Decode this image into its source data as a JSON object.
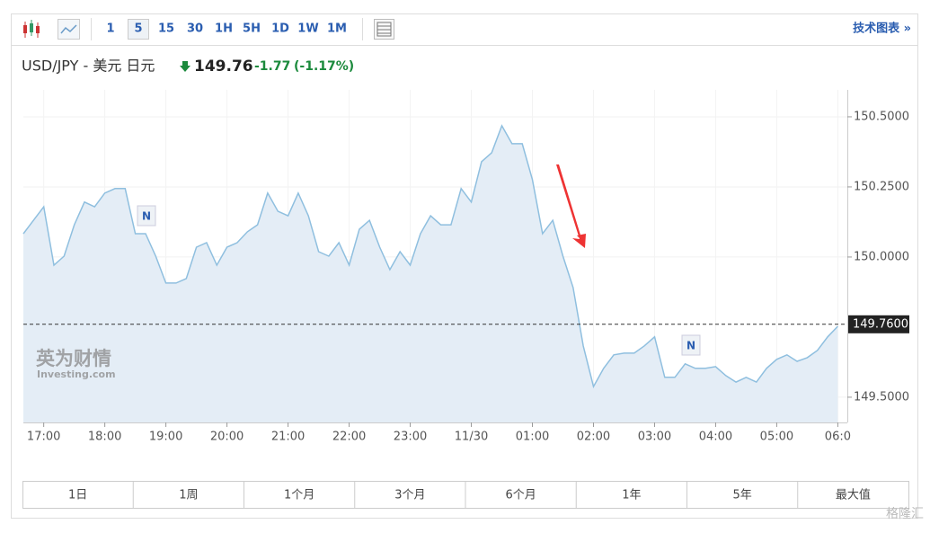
{
  "toolbar": {
    "intervals": [
      "1",
      "5",
      "15",
      "30",
      "1H",
      "5H",
      "1D",
      "1W",
      "1M"
    ],
    "selected": "5",
    "link": "技术图表 »"
  },
  "header": {
    "title": "USD/JPY - 美元 日元",
    "price": "149.76",
    "change": "-1.77",
    "change_pct": "(-1.17%)"
  },
  "chart_data": {
    "type": "line",
    "color": "#8fbfdf",
    "fill": "#e4edf6",
    "grid": true,
    "categories": [
      null,
      null,
      "17:00",
      null,
      null,
      null,
      null,
      null,
      "18:00",
      null,
      null,
      null,
      null,
      null,
      "19:00",
      null,
      null,
      null,
      null,
      null,
      "20:00",
      null,
      null,
      null,
      null,
      null,
      "21:00",
      null,
      null,
      null,
      null,
      null,
      "22:00",
      null,
      null,
      null,
      null,
      null,
      "23:00",
      null,
      null,
      null,
      null,
      null,
      "11/30",
      null,
      null,
      null,
      null,
      null,
      "01:00",
      null,
      null,
      null,
      null,
      null,
      "02:00",
      null,
      null,
      null,
      null,
      null,
      "03:00",
      null,
      null,
      null,
      null,
      null,
      "04:00",
      null,
      null,
      null,
      null,
      null,
      "05:00",
      null,
      null,
      null,
      null,
      null,
      "06:0"
    ],
    "values": [
      150.083,
      150.131,
      150.179,
      149.971,
      150.003,
      150.115,
      150.196,
      150.179,
      150.228,
      150.244,
      150.244,
      150.083,
      150.083,
      150.003,
      149.907,
      149.907,
      149.923,
      150.035,
      150.051,
      149.971,
      150.035,
      150.051,
      150.09,
      150.115,
      150.228,
      150.163,
      150.147,
      150.228,
      150.147,
      150.019,
      150.003,
      150.051,
      149.971,
      150.099,
      150.131,
      150.035,
      149.955,
      150.019,
      149.971,
      150.083,
      150.147,
      150.115,
      150.115,
      150.244,
      150.196,
      150.34,
      150.372,
      150.468,
      150.404,
      150.404,
      150.276,
      150.083,
      150.131,
      150.003,
      149.891,
      149.683,
      149.538,
      149.603,
      149.651,
      149.657,
      149.657,
      149.683,
      149.715,
      149.571,
      149.571,
      149.619,
      149.603,
      149.603,
      149.609,
      149.577,
      149.554,
      149.571,
      149.554,
      149.603,
      149.635,
      149.651,
      149.628,
      149.641,
      149.667,
      149.715,
      149.753
    ],
    "ylim": [
      149.41,
      150.596
    ],
    "yticks": [
      {
        "value": 149.5,
        "label": "149.5000"
      },
      {
        "value": 150,
        "label": "150.0000"
      },
      {
        "value": 150.25,
        "label": "150.2500"
      },
      {
        "value": 150.5,
        "label": "150.5000"
      }
    ],
    "last_price": {
      "value": 149.76,
      "label": "149.7600"
    },
    "annotations": [
      "N",
      "N"
    ]
  },
  "ranges": [
    "1日",
    "1周",
    "1个月",
    "3个月",
    "6个月",
    "1年",
    "5年",
    "最大值"
  ],
  "watermark": {
    "cn": "英为财情",
    "en": "Investing.com"
  },
  "logo": "格隆汇"
}
